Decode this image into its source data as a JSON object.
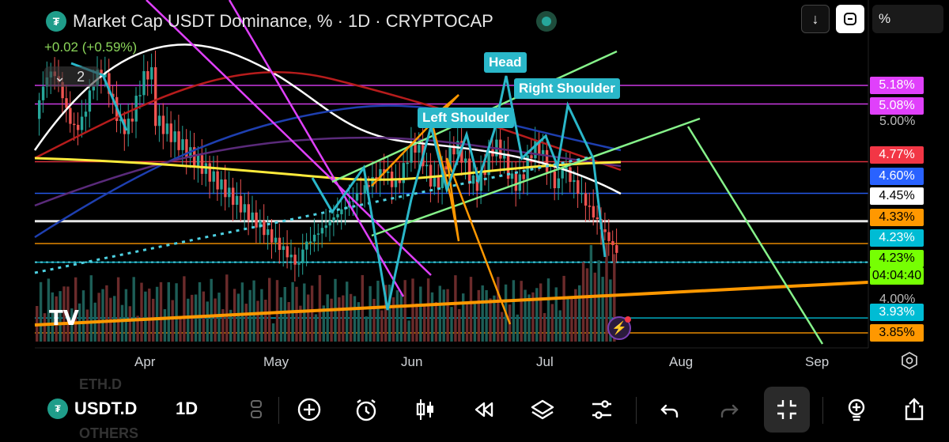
{
  "header": {
    "logo_symbol": "₮",
    "title": "Market Cap USDT Dominance, % · 1D · CRYPTOCAP",
    "change": "+0.02 (+0.59%)",
    "collapse_count": "2",
    "scale_label": "%"
  },
  "price_labels": [
    {
      "text": "5.18%",
      "bg": "#e040fb",
      "fg": "#ffffff"
    },
    {
      "text": "5.08%",
      "bg": "#e040fb",
      "fg": "#ffffff"
    },
    {
      "text": "5.00%",
      "bg": "none",
      "fg": "#b2b5be"
    },
    {
      "text": "4.77%",
      "bg": "#f23645",
      "fg": "#ffffff"
    },
    {
      "text": "4.60%",
      "bg": "#2962ff",
      "fg": "#ffffff"
    },
    {
      "text": "4.45%",
      "bg": "#ffffff",
      "fg": "#000000"
    },
    {
      "text": "4.33%",
      "bg": "#ff9800",
      "fg": "#000000"
    },
    {
      "text": "4.23%",
      "bg": "#00bcd4",
      "fg": "#ffffff"
    },
    {
      "text": "4.23%",
      "bg": "#76ff03",
      "fg": "#000000"
    },
    {
      "text": "04:04:40",
      "bg": "#76ff03",
      "fg": "#000000"
    },
    {
      "text": "4.00%",
      "bg": "none",
      "fg": "#b2b5be"
    },
    {
      "text": "3.93%",
      "bg": "#00bcd4",
      "fg": "#ffffff"
    },
    {
      "text": "3.85%",
      "bg": "#ff9800",
      "fg": "#000000"
    }
  ],
  "annotations": {
    "head": "Head",
    "right_shoulder": "Right Shoulder",
    "left_shoulder": "Left Shoulder"
  },
  "x_axis": [
    "Apr",
    "May",
    "Jun",
    "Jul",
    "Aug",
    "Sep"
  ],
  "watermark": "TV",
  "toolbar": {
    "symbol": "USDT.D",
    "symbol_logo": "₮",
    "timeframe": "1D",
    "ghost_above": "ETH.D",
    "ghost_below": "OTHERS",
    "icons": [
      "compare-icon",
      "add-icon",
      "alert-clock-icon",
      "candles-icon",
      "replay-icon",
      "layers-icon",
      "settings-sliders-icon",
      "undo-icon",
      "redo-icon",
      "fullscreen-exit-icon",
      "idea-icon",
      "share-icon"
    ]
  },
  "colors": {
    "accent_cyan": "#2ab7c9",
    "up": "#26a69a",
    "down": "#ef5350",
    "magenta": "#e040fb",
    "orange": "#ff9800",
    "lightgreen": "#86f28a"
  },
  "chart_data": {
    "type": "candlestick",
    "title": "Market Cap USDT Dominance, % · 1D · CRYPTOCAP",
    "x_labels": [
      "Apr",
      "May",
      "Jun",
      "Jul",
      "Aug",
      "Sep"
    ],
    "y_labels": [
      "5.18%",
      "5.08%",
      "5.00%",
      "4.77%",
      "4.60%",
      "4.45%",
      "4.33%",
      "4.23%",
      "4.00%",
      "3.93%",
      "3.85%"
    ],
    "last_value": "4.23%",
    "countdown": "04:04:40",
    "horizontal_levels": [
      {
        "value": 5.18,
        "color": "#e040fb"
      },
      {
        "value": 5.08,
        "color": "#e040fb"
      },
      {
        "value": 4.77,
        "color": "#f23645"
      },
      {
        "value": 4.6,
        "color": "#2962ff"
      },
      {
        "value": 4.45,
        "color": "#ffffff"
      },
      {
        "value": 4.33,
        "color": "#ff9800"
      },
      {
        "value": 4.23,
        "color": "#00bcd4"
      },
      {
        "value": 3.93,
        "color": "#00bcd4"
      },
      {
        "value": 3.85,
        "color": "#ff9800"
      }
    ],
    "pattern": "Head and Shoulders",
    "grid": false
  }
}
